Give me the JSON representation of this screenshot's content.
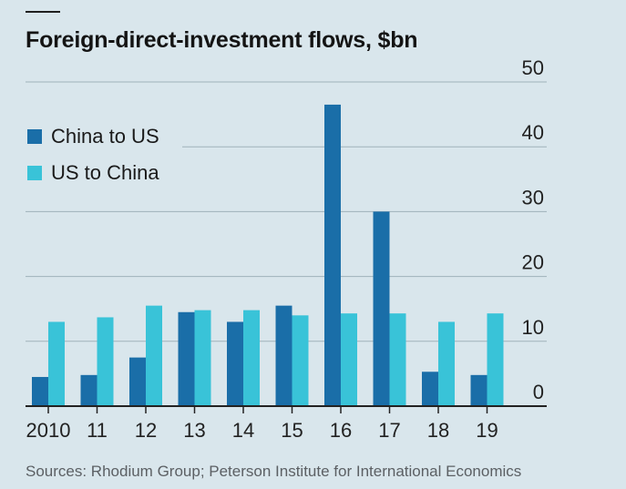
{
  "header": {
    "title": "Foreign-direct-investment flows, $bn",
    "source": "Sources: Rhodium Group; Peterson Institute for International Economics"
  },
  "legend": [
    {
      "label": "China to US"
    },
    {
      "label": "US to China"
    }
  ],
  "colors": {
    "background": "#d9e6ec",
    "china_to_us": "#1a6ea8",
    "us_to_china": "#39c3d8",
    "gridline": "#9fb1ba",
    "baseline": "#222222"
  },
  "chart_data": {
    "type": "bar",
    "title": "Foreign-direct-investment flows, $bn",
    "xlabel": "",
    "ylabel": "",
    "categories": [
      "2010",
      "11",
      "12",
      "13",
      "14",
      "15",
      "16",
      "17",
      "18",
      "19"
    ],
    "series": [
      {
        "name": "China to US",
        "values": [
          4.5,
          4.8,
          7.5,
          14.5,
          13.0,
          15.5,
          46.5,
          30.0,
          5.3,
          4.8
        ]
      },
      {
        "name": "US to China",
        "values": [
          13.0,
          13.7,
          15.5,
          14.8,
          14.8,
          14.0,
          14.3,
          14.3,
          13.0,
          14.3
        ]
      }
    ],
    "ylim": [
      0,
      50
    ],
    "yticks": [
      0,
      10,
      20,
      30,
      40,
      50
    ],
    "y_axis_position": "right",
    "grid": true,
    "legend_position": "top-left"
  }
}
